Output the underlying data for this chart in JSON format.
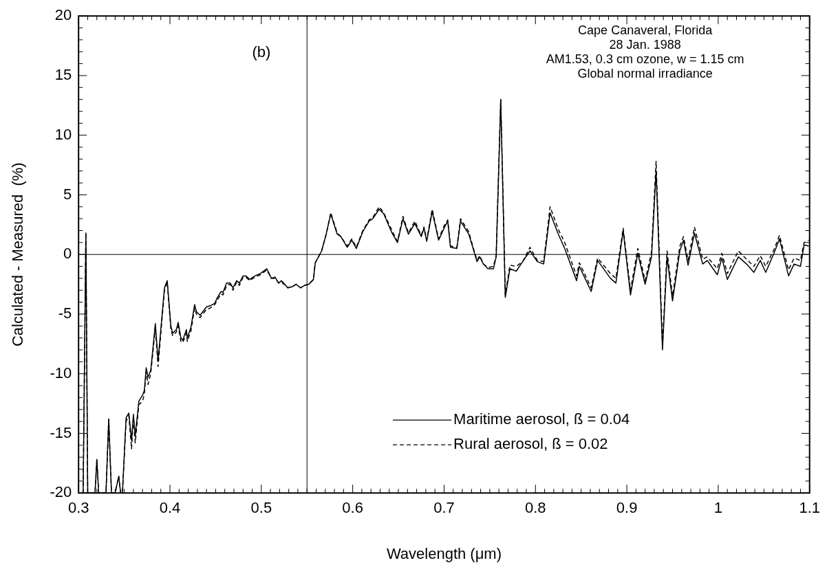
{
  "chart_data": {
    "type": "line",
    "xlabel": "Wavelength (μm)",
    "ylabel": "Calculated - Measured  (%)",
    "x": [
      0.305,
      0.308,
      0.31,
      0.318,
      0.32,
      0.322,
      0.33,
      0.333,
      0.336,
      0.34,
      0.344,
      0.346,
      0.348,
      0.352,
      0.355,
      0.358,
      0.36,
      0.362,
      0.366,
      0.37,
      0.372,
      0.374,
      0.376,
      0.379,
      0.382,
      0.384,
      0.387,
      0.394,
      0.397,
      0.401,
      0.403,
      0.407,
      0.409,
      0.412,
      0.414,
      0.418,
      0.419,
      0.423,
      0.427,
      0.429,
      0.433,
      0.437,
      0.44,
      0.444,
      0.449,
      0.452,
      0.456,
      0.458,
      0.462,
      0.466,
      0.469,
      0.473,
      0.476,
      0.48,
      0.483,
      0.486,
      0.487,
      0.493,
      0.499,
      0.506,
      0.511,
      0.515,
      0.519,
      0.522,
      0.529,
      0.534,
      0.538,
      0.543,
      0.547,
      0.552,
      0.557,
      0.559,
      0.566,
      0.571,
      0.576,
      0.583,
      0.587,
      0.594,
      0.599,
      0.604,
      0.611,
      0.618,
      0.622,
      0.629,
      0.634,
      0.643,
      0.649,
      0.655,
      0.661,
      0.668,
      0.675,
      0.678,
      0.681,
      0.687,
      0.694,
      0.7,
      0.704,
      0.707,
      0.714,
      0.718,
      0.727,
      0.731,
      0.736,
      0.739,
      0.743,
      0.748,
      0.754,
      0.757,
      0.762,
      0.767,
      0.772,
      0.779,
      0.786,
      0.794,
      0.802,
      0.809,
      0.816,
      0.825,
      0.832,
      0.845,
      0.848,
      0.853,
      0.861,
      0.868,
      0.882,
      0.888,
      0.896,
      0.904,
      0.912,
      0.92,
      0.927,
      0.932,
      0.939,
      0.944,
      0.95,
      0.958,
      0.962,
      0.967,
      0.974,
      0.983,
      0.988,
      0.999,
      1.004,
      1.01,
      1.022,
      1.031,
      1.039,
      1.046,
      1.052,
      1.061,
      1.067,
      1.077,
      1.083,
      1.09,
      1.094,
      1.099
    ],
    "series": [
      {
        "name": "Maritime aerosol, ß = 0.04",
        "color": "#000000",
        "line_style": "solid",
        "values": [
          -20,
          1.8,
          -20,
          -20,
          -17.2,
          -20,
          -20,
          -13.8,
          -20,
          -20,
          -18.6,
          -20,
          -20,
          -13.7,
          -13.3,
          -15.6,
          -13.4,
          -15.2,
          -12.3,
          -11.8,
          -11.4,
          -9.5,
          -10.3,
          -9.7,
          -7.4,
          -5.8,
          -8.9,
          -2.8,
          -2.2,
          -6.0,
          -6.6,
          -6.3,
          -5.7,
          -7.0,
          -7.2,
          -6.3,
          -7.0,
          -6.1,
          -4.2,
          -4.8,
          -5.1,
          -4.7,
          -4.4,
          -4.3,
          -4.1,
          -3.6,
          -3.1,
          -3.2,
          -2.4,
          -2.4,
          -2.8,
          -2.2,
          -2.4,
          -1.8,
          -1.8,
          -2.0,
          -2.1,
          -1.8,
          -1.6,
          -1.2,
          -2.0,
          -1.9,
          -2.4,
          -2.2,
          -2.8,
          -2.7,
          -2.5,
          -2.8,
          -2.6,
          -2.5,
          -2.1,
          -0.7,
          0.3,
          1.7,
          3.4,
          1.7,
          1.5,
          0.6,
          1.2,
          0.5,
          1.9,
          2.8,
          3.0,
          3.8,
          3.4,
          1.8,
          1.0,
          3.0,
          1.7,
          2.6,
          1.5,
          2.2,
          1.1,
          3.6,
          1.2,
          2.2,
          2.8,
          0.6,
          0.5,
          2.8,
          1.7,
          0.7,
          -0.6,
          -0.2,
          -0.8,
          -1.2,
          -1.2,
          -0.2,
          13.0,
          -3.6,
          -1.2,
          -1.4,
          -0.6,
          0.3,
          -0.6,
          -0.8,
          3.5,
          1.7,
          0.5,
          -2.2,
          -1.0,
          -1.8,
          -3.1,
          -0.5,
          -2.0,
          -2.4,
          2.0,
          -3.4,
          0.1,
          -2.5,
          -0.2,
          7.0,
          -8.0,
          -0.2,
          -3.9,
          0.3,
          1.2,
          -0.9,
          1.8,
          -0.8,
          -0.5,
          -1.7,
          -0.3,
          -2.1,
          -0.2,
          -0.8,
          -1.5,
          -0.5,
          -1.5,
          0.1,
          1.3,
          -1.8,
          -0.8,
          -1.0,
          0.8,
          0.7
        ]
      },
      {
        "name": "Rural aerosol, ß = 0.02",
        "color": "#000000",
        "line_style": "dashed",
        "values": [
          -20,
          1.8,
          -20,
          -20,
          -17.2,
          -20,
          -20,
          -13.8,
          -20,
          -20,
          -18.6,
          -20,
          -20,
          -14.0,
          -13.5,
          -16.3,
          -13.6,
          -15.8,
          -12.6,
          -12.3,
          -11.7,
          -9.8,
          -10.9,
          -10.0,
          -7.7,
          -6.1,
          -9.4,
          -3.0,
          -2.3,
          -6.3,
          -6.8,
          -6.5,
          -6.0,
          -7.3,
          -7.4,
          -6.6,
          -7.3,
          -6.4,
          -4.5,
          -5.0,
          -5.3,
          -4.9,
          -4.6,
          -4.5,
          -4.2,
          -3.8,
          -3.3,
          -3.4,
          -2.6,
          -2.5,
          -3.0,
          -2.3,
          -2.6,
          -1.9,
          -1.9,
          -2.1,
          -2.2,
          -1.9,
          -1.7,
          -1.3,
          -2.0,
          -2.0,
          -2.4,
          -2.3,
          -2.8,
          -2.7,
          -2.5,
          -2.8,
          -2.6,
          -2.5,
          -2.1,
          -0.7,
          0.3,
          1.7,
          3.5,
          1.8,
          1.5,
          0.7,
          1.3,
          0.6,
          2.0,
          2.9,
          3.1,
          4.0,
          3.5,
          2.0,
          1.1,
          3.2,
          1.8,
          2.8,
          1.6,
          2.3,
          1.2,
          3.8,
          1.3,
          2.4,
          2.9,
          0.7,
          0.6,
          3.0,
          1.9,
          0.8,
          -0.5,
          -0.1,
          -0.8,
          -1.1,
          -1.0,
          -0.1,
          13.0,
          -3.4,
          -0.9,
          -1.0,
          -0.6,
          0.6,
          -0.5,
          -0.6,
          4.0,
          2.1,
          1.0,
          -1.8,
          -0.7,
          -1.5,
          -2.8,
          -0.3,
          -1.6,
          -2.0,
          2.2,
          -3.0,
          0.5,
          -2.2,
          0.2,
          7.8,
          -7.6,
          0.3,
          -3.5,
          0.7,
          1.5,
          -0.5,
          2.3,
          -0.4,
          -0.2,
          -1.2,
          0.1,
          -1.6,
          0.3,
          -0.4,
          -1.0,
          -0.1,
          -1.0,
          0.4,
          1.6,
          -1.3,
          -0.3,
          -0.5,
          1.0,
          1.2
        ]
      }
    ],
    "xlim": [
      0.3,
      1.1
    ],
    "xticks": [
      0.3,
      {
        "value": 0.31,
        "label": null
      },
      {
        "value": 0.32,
        "label": null
      },
      {
        "value": 0.33,
        "label": null
      },
      {
        "value": 0.34,
        "label": null
      },
      {
        "value": 0.35,
        "label": null
      },
      {
        "value": 0.36,
        "label": null
      },
      {
        "value": 0.37,
        "label": null
      },
      {
        "value": 0.38,
        "label": null
      },
      {
        "value": 0.39,
        "label": null
      },
      0.4,
      {
        "value": 0.41,
        "label": null
      },
      {
        "value": 0.42,
        "label": null
      },
      {
        "value": 0.43,
        "label": null
      },
      {
        "value": 0.44,
        "label": null
      },
      {
        "value": 0.45,
        "label": null
      },
      {
        "value": 0.46,
        "label": null
      },
      {
        "value": 0.47,
        "label": null
      },
      {
        "value": 0.48,
        "label": null
      },
      {
        "value": 0.49,
        "label": null
      },
      0.5,
      {
        "value": 0.51,
        "label": null
      },
      {
        "value": 0.52,
        "label": null
      },
      {
        "value": 0.53,
        "label": null
      },
      {
        "value": 0.54,
        "label": null
      },
      {
        "value": 0.55,
        "label": null
      },
      {
        "value": 0.56,
        "label": null
      },
      {
        "value": 0.57,
        "label": null
      },
      {
        "value": 0.58,
        "label": null
      },
      {
        "value": 0.59,
        "label": null
      },
      0.6,
      {
        "value": 0.61,
        "label": null
      },
      {
        "value": 0.62,
        "label": null
      },
      {
        "value": 0.63,
        "label": null
      },
      {
        "value": 0.64,
        "label": null
      },
      {
        "value": 0.65,
        "label": null
      },
      {
        "value": 0.66,
        "label": null
      },
      {
        "value": 0.67,
        "label": null
      },
      {
        "value": 0.68,
        "label": null
      },
      {
        "value": 0.69,
        "label": null
      },
      0.7,
      {
        "value": 0.71,
        "label": null
      },
      {
        "value": 0.72,
        "label": null
      },
      {
        "value": 0.73,
        "label": null
      },
      {
        "value": 0.74,
        "label": null
      },
      {
        "value": 0.75,
        "label": null
      },
      {
        "value": 0.76,
        "label": null
      },
      {
        "value": 0.77,
        "label": null
      },
      {
        "value": 0.78,
        "label": null
      },
      {
        "value": 0.79,
        "label": null
      },
      0.8,
      {
        "value": 0.81,
        "label": null
      },
      {
        "value": 0.82,
        "label": null
      },
      {
        "value": 0.83,
        "label": null
      },
      {
        "value": 0.84,
        "label": null
      },
      {
        "value": 0.85,
        "label": null
      },
      {
        "value": 0.86,
        "label": null
      },
      {
        "value": 0.87,
        "label": null
      },
      {
        "value": 0.88,
        "label": null
      },
      {
        "value": 0.89,
        "label": null
      },
      0.9,
      {
        "value": 0.91,
        "label": null
      },
      {
        "value": 0.92,
        "label": null
      },
      {
        "value": 0.93,
        "label": null
      },
      {
        "value": 0.94,
        "label": null
      },
      {
        "value": 0.95,
        "label": null
      },
      {
        "value": 0.96,
        "label": null
      },
      {
        "value": 0.97,
        "label": null
      },
      {
        "value": 0.98,
        "label": null
      },
      {
        "value": 0.99,
        "label": null
      },
      1,
      {
        "value": 1.01,
        "label": null
      },
      {
        "value": 1.02,
        "label": null
      },
      {
        "value": 1.03,
        "label": null
      },
      {
        "value": 1.04,
        "label": null
      },
      {
        "value": 1.05,
        "label": null
      },
      {
        "value": 1.06,
        "label": null
      },
      {
        "value": 1.07,
        "label": null
      },
      {
        "value": 1.08,
        "label": null
      },
      {
        "value": 1.09,
        "label": null
      },
      1.1
    ],
    "ylim": [
      -20,
      20
    ],
    "yticks": [
      -20,
      {
        "value": -19,
        "label": null
      },
      {
        "value": -18,
        "label": null
      },
      {
        "value": -17,
        "label": null
      },
      {
        "value": -16,
        "label": null
      },
      -15,
      {
        "value": -14,
        "label": null
      },
      {
        "value": -13,
        "label": null
      },
      {
        "value": -12,
        "label": null
      },
      {
        "value": -11,
        "label": null
      },
      -10,
      {
        "value": -9,
        "label": null
      },
      {
        "value": -8,
        "label": null
      },
      {
        "value": -7,
        "label": null
      },
      {
        "value": -6,
        "label": null
      },
      -5,
      {
        "value": -4,
        "label": null
      },
      {
        "value": -3,
        "label": null
      },
      {
        "value": -2,
        "label": null
      },
      {
        "value": -1,
        "label": null
      },
      0,
      {
        "value": 1,
        "label": null
      },
      {
        "value": 2,
        "label": null
      },
      {
        "value": 3,
        "label": null
      },
      {
        "value": 4,
        "label": null
      },
      5,
      {
        "value": 6,
        "label": null
      },
      {
        "value": 7,
        "label": null
      },
      {
        "value": 8,
        "label": null
      },
      {
        "value": 9,
        "label": null
      },
      10,
      {
        "value": 11,
        "label": null
      },
      {
        "value": 12,
        "label": null
      },
      {
        "value": 13,
        "label": null
      },
      {
        "value": 14,
        "label": null
      },
      15,
      {
        "value": 16,
        "label": null
      },
      {
        "value": 17,
        "label": null
      },
      {
        "value": 18,
        "label": null
      },
      {
        "value": 19,
        "label": null
      },
      20
    ],
    "ref_lines": [
      {
        "axis": "x",
        "value": 0.55,
        "color": "#000000"
      },
      {
        "axis": "y",
        "value": 0,
        "color": "#000000"
      }
    ],
    "annotations": [
      "(b)",
      "Cape Canaveral, Florida",
      "28 Jan. 1988",
      "AM1.53, 0.3 cm ozone, w = 1.15 cm",
      "Global normal irradiance"
    ],
    "legend": "bottom right"
  }
}
